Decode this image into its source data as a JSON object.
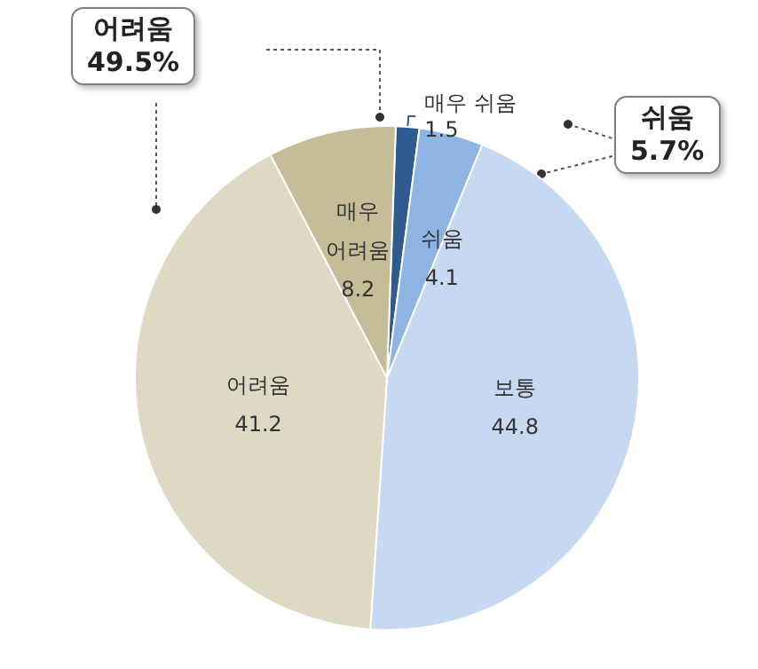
{
  "chart_data": {
    "type": "pie",
    "categories": [
      "매우 쉬움",
      "쉬움",
      "보통",
      "어려움",
      "매우 어려움"
    ],
    "values": [
      1.5,
      4.1,
      44.8,
      41.2,
      8.2
    ],
    "colors": [
      "#2f5b8f",
      "#8eb4e3",
      "#c6d9f1",
      "#ddd9c3",
      "#c4bd97"
    ],
    "data_labels": true,
    "legend": false,
    "annotations": [
      "어려움\n49.5%",
      "쉬움\n5.7%"
    ]
  }
}
